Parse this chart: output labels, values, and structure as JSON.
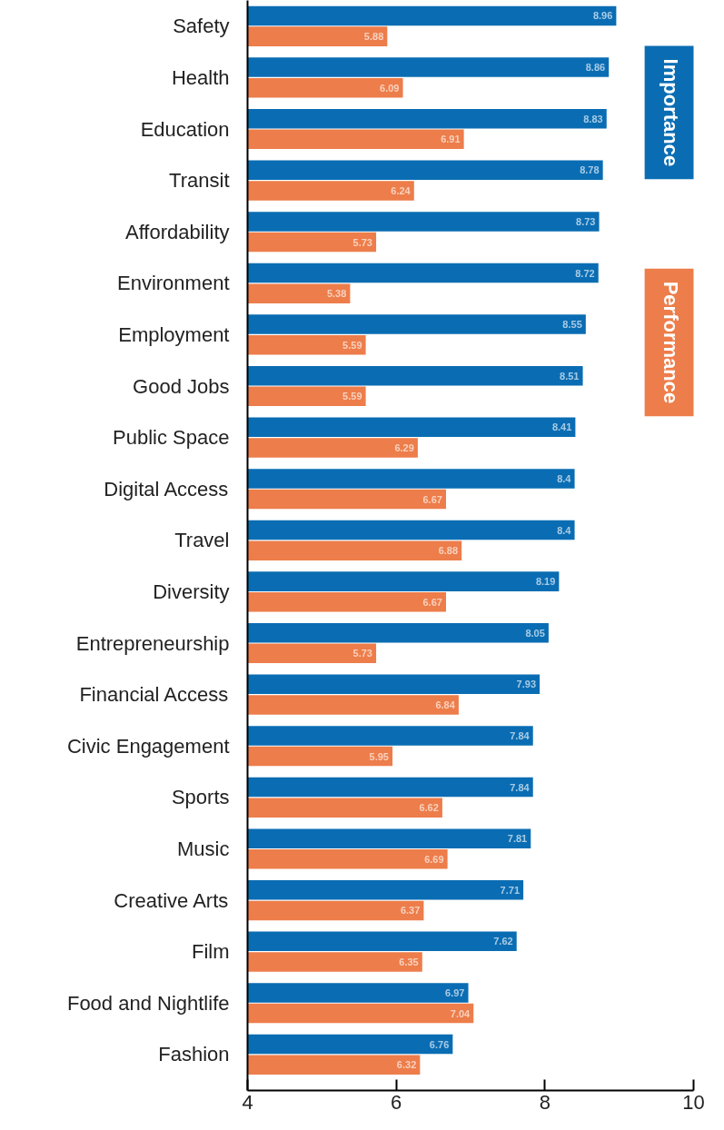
{
  "chart_data": {
    "type": "bar",
    "orientation": "horizontal",
    "categories": [
      "Safety",
      "Health",
      "Education",
      "Transit",
      "Affordability",
      "Environment",
      "Employment",
      "Good Jobs",
      "Public Space",
      "Digital Access",
      "Travel",
      "Diversity",
      "Entrepreneurship",
      "Financial Access",
      "Civic Engagement",
      "Sports",
      "Music",
      "Creative Arts",
      "Film",
      "Food and Nightlife",
      "Fashion"
    ],
    "series": [
      {
        "name": "Importance",
        "color": "#0a6db3",
        "values": [
          8.96,
          8.86,
          8.83,
          8.78,
          8.73,
          8.72,
          8.55,
          8.51,
          8.41,
          8.4,
          8.4,
          8.19,
          8.05,
          7.93,
          7.84,
          7.84,
          7.81,
          7.71,
          7.62,
          6.97,
          6.76
        ]
      },
      {
        "name": "Performance",
        "color": "#ed7d4a",
        "values": [
          5.88,
          6.09,
          6.91,
          6.24,
          5.73,
          5.38,
          5.59,
          5.59,
          6.29,
          6.67,
          6.88,
          6.67,
          5.73,
          6.84,
          5.95,
          6.62,
          6.69,
          6.37,
          6.35,
          7.04,
          6.32
        ]
      }
    ],
    "xlim": [
      4,
      10
    ],
    "xticks": [
      4,
      6,
      8,
      10
    ],
    "data_labels": true,
    "grid": false,
    "legend": "top right"
  }
}
